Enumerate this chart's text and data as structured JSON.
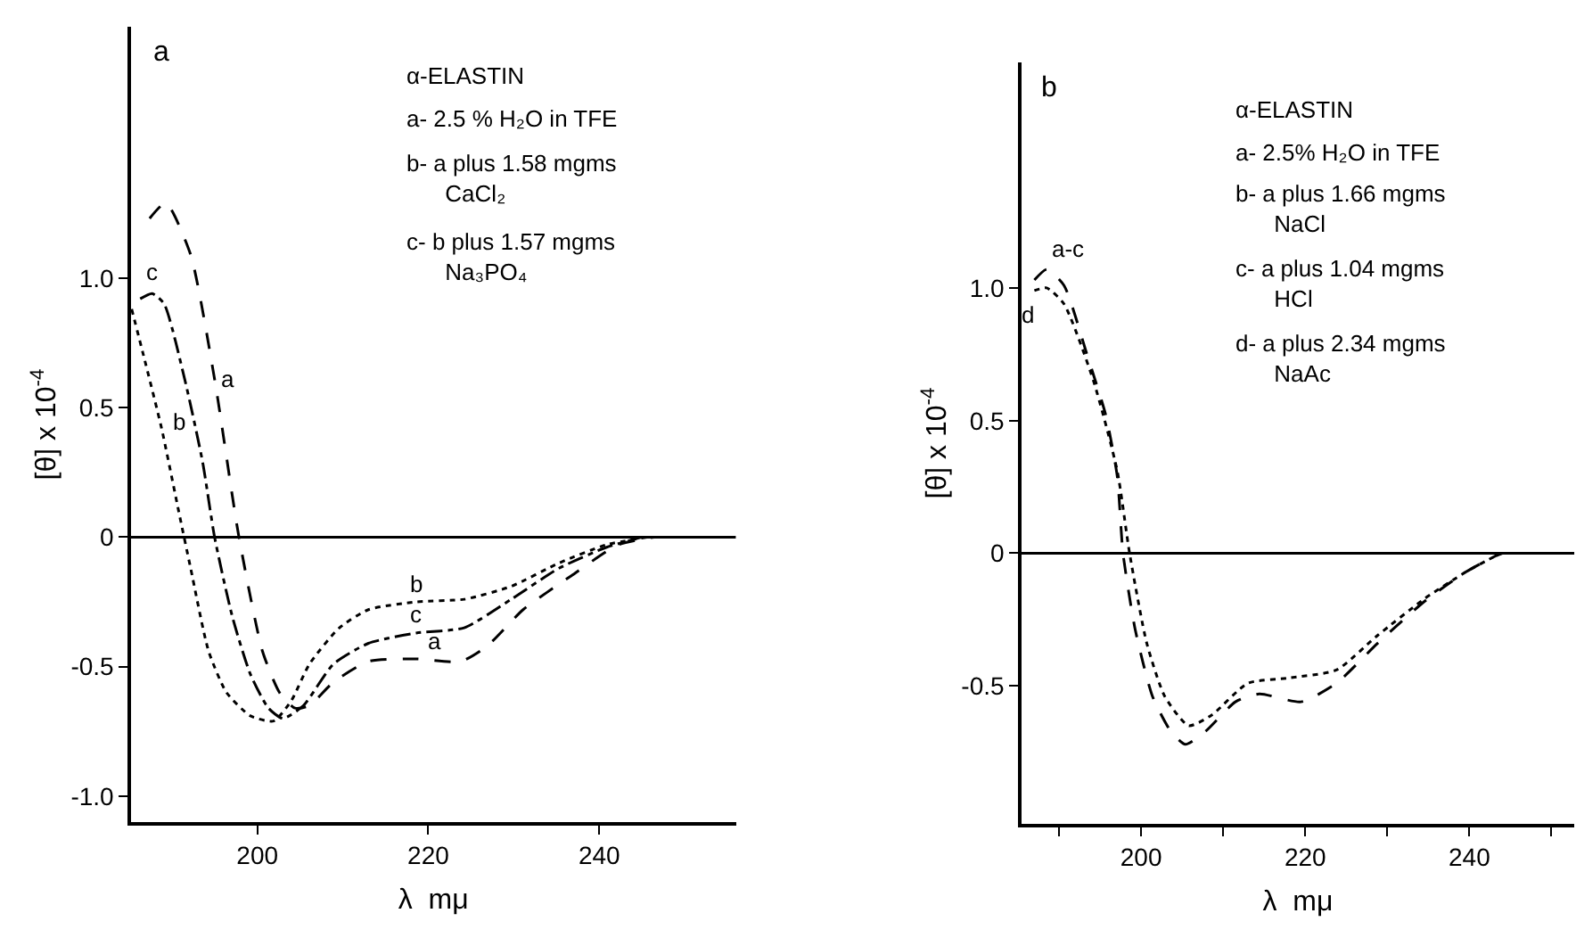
{
  "chart_data": [
    {
      "type": "line",
      "title": "a",
      "xlabel": "λ  mμ",
      "ylabel": "[θ] x 10$^{-4}$",
      "xlim": [
        185.2,
        256
      ],
      "ylim": [
        -1.1,
        1.97
      ],
      "xticks": [
        200,
        220,
        240
      ],
      "yticks": [
        {
          "value": 1,
          "label": "1.0"
        },
        {
          "value": 0.5,
          "label": "0.5"
        },
        0,
        {
          "value": -0.5,
          "label": "-0.5"
        },
        {
          "value": -1,
          "label": "-1.0"
        }
      ],
      "ref_lines": [
        {
          "axis": "y",
          "value": 0,
          "color": "#000000",
          "line_style": "solid"
        }
      ],
      "series": [
        {
          "color": "#000000",
          "line_style": "dashed",
          "x": [
            187.4,
            189.3,
            192.2,
            195,
            197.8,
            200.6,
            202.6,
            204.4,
            206.1,
            208.9,
            213,
            218.6,
            223.8,
            226.9,
            231.1,
            236.7,
            242.2,
            246.4
          ],
          "values": [
            1.23,
            1.29,
            1.09,
            0.61,
            0.01,
            -0.44,
            -0.6,
            -0.66,
            -0.65,
            -0.56,
            -0.48,
            -0.47,
            -0.48,
            -0.42,
            -0.28,
            -0.15,
            -0.03,
            0
          ]
        },
        {
          "color": "#000000",
          "line_style": "dotted",
          "x": [
            185.3,
            186.7,
            188.8,
            190.8,
            192.2,
            194.3,
            196.4,
            199.2,
            201.9,
            204,
            206.1,
            209.6,
            213,
            218.6,
            224.2,
            229.7,
            235.3,
            240.8,
            245.7
          ],
          "values": [
            0.88,
            0.7,
            0.42,
            0.1,
            -0.12,
            -0.44,
            -0.6,
            -0.69,
            -0.71,
            -0.63,
            -0.49,
            -0.35,
            -0.28,
            -0.25,
            -0.24,
            -0.19,
            -0.1,
            -0.03,
            0
          ]
        },
        {
          "color": "#000000",
          "line_style": "dashdot",
          "x": [
            186.3,
            187.7,
            189.1,
            191.5,
            193.6,
            195,
            197.1,
            199.2,
            201.3,
            203,
            205.4,
            208.9,
            213,
            218.6,
            224.2,
            229.7,
            235.3,
            240.8,
            245
          ],
          "values": [
            0.92,
            0.94,
            0.9,
            0.61,
            0.29,
            0,
            -0.31,
            -0.53,
            -0.66,
            -0.7,
            -0.65,
            -0.49,
            -0.41,
            -0.37,
            -0.35,
            -0.24,
            -0.12,
            -0.04,
            0
          ]
        }
      ],
      "annotations": [
        "α-ELASTIN",
        "a- 2.5 % H₂O in TFE",
        "b- a plus 1.58 mgms\n      CaCl₂",
        "c- b plus 1.57 mgms\n      Na₃PO₄",
        {
          "text": "a",
          "x": 195,
          "y": 0.61
        },
        {
          "text": "b",
          "x": 188.8,
          "y": 0.42
        },
        {
          "text": "c",
          "x": 187.7,
          "y": 0.94
        },
        {
          "text": "b",
          "x": 218.6,
          "y": -0.25
        },
        {
          "text": "c",
          "x": 218.6,
          "y": -0.37
        },
        {
          "text": "a",
          "x": 218.6,
          "y": -0.47
        }
      ]
    },
    {
      "type": "line",
      "title": "b",
      "xlabel": "λ  mμ",
      "ylabel": "[θ] x 10$^{-4}$",
      "xlim": [
        185.4,
        252.8
      ],
      "ylim": [
        -1.02,
        1.85
      ],
      "xticks": [
        {
          "value": 190,
          "label": null
        },
        200,
        {
          "value": 210,
          "label": null
        },
        220,
        {
          "value": 230,
          "label": null
        },
        240,
        {
          "value": 250,
          "label": null
        }
      ],
      "yticks": [
        {
          "value": 1,
          "label": "1.0"
        },
        {
          "value": 0.5,
          "label": "0.5"
        },
        0,
        {
          "value": -0.5,
          "label": "-0.5"
        }
      ],
      "ref_lines": [
        {
          "axis": "y",
          "value": 0,
          "color": "#000000",
          "line_style": "solid"
        }
      ],
      "series": [
        {
          "color": "#000000",
          "line_style": "dashed",
          "x": [
            187,
            188.5,
            190.6,
            193.5,
            195.7,
            197.1,
            197.8,
            199.3,
            201.4,
            203.6,
            205.4,
            207.9,
            211.5,
            214.4,
            219.5,
            223.8,
            228.8,
            234.6,
            239.6,
            243.2,
            244
          ],
          "values": [
            1.03,
            1.07,
            1.01,
            0.74,
            0.52,
            0.29,
            0,
            -0.29,
            -0.54,
            -0.67,
            -0.72,
            -0.67,
            -0.56,
            -0.53,
            -0.56,
            -0.49,
            -0.34,
            -0.18,
            -0.07,
            -0.01,
            0
          ]
        },
        {
          "color": "#000000",
          "line_style": "dotted",
          "x": [
            187,
            188.5,
            190.6,
            194.2,
            197.1,
            198.6,
            200.7,
            202.9,
            205.8,
            208.6,
            213,
            218,
            223.8,
            228.8,
            234.6,
            239.6,
            243.2
          ],
          "values": [
            0.99,
            1.0,
            0.94,
            0.65,
            0.31,
            0,
            -0.34,
            -0.54,
            -0.65,
            -0.61,
            -0.49,
            -0.47,
            -0.44,
            -0.31,
            -0.17,
            -0.07,
            -0.01
          ]
        }
      ],
      "annotations": [
        "α-ELASTIN",
        "a- 2.5% H₂O in TFE",
        "b- a plus 1.66 mgms\n      NaCl",
        "c- a plus 1.04 mgms\n      HCl",
        "d- a plus 2.34 mgms\n      NaAc",
        {
          "text": "a-c",
          "x": 188.5,
          "y": 1.07
        },
        {
          "text": "d",
          "x": 187,
          "y": 0.99
        }
      ]
    }
  ]
}
